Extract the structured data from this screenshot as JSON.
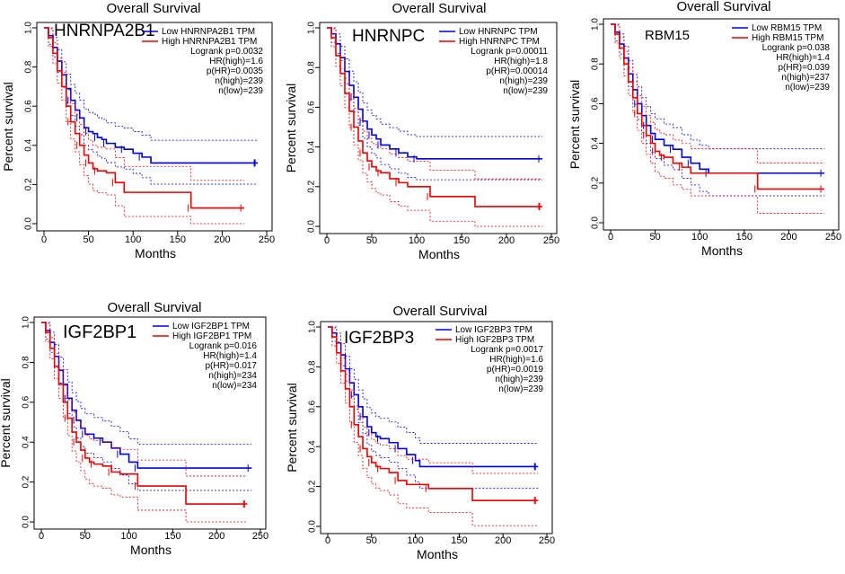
{
  "chart_data": [
    {
      "type": "line",
      "title": "Overall Survival",
      "gene": "HNRNPA2B1",
      "xlabel": "Months",
      "ylabel": "Percent survival",
      "xlim": [
        0,
        250
      ],
      "ylim": [
        0,
        1
      ],
      "xticks": [
        "0",
        "50",
        "100",
        "150",
        "200",
        "250"
      ],
      "yticks": [
        "0.0",
        "0.2",
        "0.4",
        "0.6",
        "0.8",
        "1.0"
      ],
      "legend": [
        "Low HNRNPA2B1 TPM",
        "High HNRNPA2B1 TPM"
      ],
      "stats": [
        "Logrank p=0.0032",
        "HR(high)=1.6",
        "p(HR)=0.0035",
        "n(high)=239",
        "n(low)=239"
      ],
      "series": [
        {
          "name": "Low HNRNPA2B1 TPM",
          "color": "#0000dd",
          "x": [
            0,
            5,
            10,
            15,
            20,
            25,
            30,
            35,
            40,
            45,
            50,
            55,
            60,
            65,
            70,
            80,
            90,
            100,
            110,
            120,
            240
          ],
          "y": [
            1.0,
            0.96,
            0.9,
            0.83,
            0.76,
            0.69,
            0.63,
            0.58,
            0.54,
            0.49,
            0.47,
            0.46,
            0.44,
            0.43,
            0.41,
            0.39,
            0.38,
            0.36,
            0.34,
            0.31,
            0.31
          ]
        },
        {
          "name": "High HNRNPA2B1 TPM",
          "color": "#ee0000",
          "x": [
            0,
            5,
            10,
            15,
            20,
            25,
            30,
            35,
            40,
            45,
            50,
            55,
            60,
            70,
            80,
            90,
            165,
            225
          ],
          "y": [
            1.0,
            0.95,
            0.87,
            0.78,
            0.7,
            0.6,
            0.52,
            0.46,
            0.4,
            0.35,
            0.31,
            0.28,
            0.27,
            0.26,
            0.21,
            0.16,
            0.08,
            0.08
          ]
        }
      ]
    },
    {
      "type": "line",
      "title": "Overall Survival",
      "gene": "HNRNPC",
      "xlabel": "Months",
      "ylabel": "Percent survival",
      "xlim": [
        0,
        250
      ],
      "ylim": [
        0,
        1
      ],
      "xticks": [
        "0",
        "50",
        "100",
        "150",
        "200",
        "250"
      ],
      "yticks": [
        "0.0",
        "0.2",
        "0.4",
        "0.6",
        "0.8",
        "1.0"
      ],
      "legend": [
        "Low HNRNPC TPM",
        "High HNRNPC TPM"
      ],
      "stats": [
        "Logrank p=0.00011",
        "HR(high)=1.8",
        "p(HR)=0.00014",
        "n(high)=239",
        "n(low)=239"
      ],
      "series": [
        {
          "name": "Low HNRNPC TPM",
          "color": "#0000dd",
          "x": [
            0,
            5,
            10,
            15,
            20,
            25,
            30,
            35,
            40,
            45,
            50,
            55,
            60,
            70,
            80,
            90,
            100,
            240
          ],
          "y": [
            1.0,
            0.97,
            0.92,
            0.85,
            0.78,
            0.71,
            0.65,
            0.59,
            0.53,
            0.49,
            0.46,
            0.44,
            0.41,
            0.39,
            0.37,
            0.35,
            0.34,
            0.34
          ]
        },
        {
          "name": "High HNRNPC TPM",
          "color": "#ee0000",
          "x": [
            0,
            5,
            10,
            15,
            20,
            25,
            30,
            35,
            40,
            45,
            50,
            55,
            60,
            70,
            80,
            90,
            115,
            165,
            240
          ],
          "y": [
            1.0,
            0.95,
            0.86,
            0.77,
            0.67,
            0.58,
            0.5,
            0.43,
            0.37,
            0.33,
            0.3,
            0.28,
            0.27,
            0.24,
            0.22,
            0.2,
            0.15,
            0.1,
            0.1
          ]
        }
      ]
    },
    {
      "type": "line",
      "title": "Overall Survival",
      "gene": "RBM15",
      "xlabel": "Months",
      "ylabel": "Percent survival",
      "xlim": [
        0,
        250
      ],
      "ylim": [
        0,
        1
      ],
      "xticks": [
        "0",
        "50",
        "100",
        "150",
        "200",
        "250"
      ],
      "yticks": [
        "0.0",
        "0.2",
        "0.4",
        "0.6",
        "0.8",
        "1.0"
      ],
      "legend": [
        "Low RBM15 TPM",
        "High RBM15 TPM"
      ],
      "stats": [
        "Logrank p=0.038",
        "HR(high)=1.4",
        "p(HR)=0.039",
        "n(high)=237",
        "n(low)=239"
      ],
      "series": [
        {
          "name": "Low RBM15 TPM",
          "color": "#0000dd",
          "x": [
            0,
            5,
            10,
            15,
            20,
            25,
            30,
            35,
            40,
            45,
            50,
            60,
            70,
            80,
            90,
            100,
            110,
            240
          ],
          "y": [
            1.0,
            0.96,
            0.9,
            0.83,
            0.75,
            0.67,
            0.6,
            0.54,
            0.49,
            0.45,
            0.42,
            0.39,
            0.37,
            0.33,
            0.3,
            0.27,
            0.25,
            0.25
          ]
        },
        {
          "name": "High RBM15 TPM",
          "color": "#ee0000",
          "x": [
            0,
            5,
            10,
            15,
            20,
            25,
            30,
            35,
            40,
            45,
            50,
            55,
            60,
            70,
            80,
            90,
            165,
            240
          ],
          "y": [
            1.0,
            0.95,
            0.88,
            0.8,
            0.71,
            0.63,
            0.55,
            0.49,
            0.44,
            0.4,
            0.36,
            0.34,
            0.33,
            0.3,
            0.28,
            0.25,
            0.17,
            0.17
          ]
        }
      ]
    },
    {
      "type": "line",
      "title": "Overall Survival",
      "gene": "IGF2BP1",
      "xlabel": "Months",
      "ylabel": "Percent survival",
      "xlim": [
        0,
        250
      ],
      "ylim": [
        0,
        1
      ],
      "xticks": [
        "0",
        "50",
        "100",
        "150",
        "200",
        "250"
      ],
      "yticks": [
        "0.0",
        "0.2",
        "0.4",
        "0.6",
        "0.8",
        "1.0"
      ],
      "legend": [
        "Low IGF2BP1 TPM",
        "High IGF2BP1 TPM"
      ],
      "stats": [
        "Logrank p=0.016",
        "HR(high)=1.4",
        "p(HR)=0.017",
        "n(high)=234",
        "n(low)=234"
      ],
      "series": [
        {
          "name": "Low IGF2BP1 TPM",
          "color": "#0000dd",
          "x": [
            0,
            5,
            10,
            15,
            20,
            25,
            30,
            35,
            40,
            45,
            50,
            60,
            70,
            80,
            90,
            100,
            110,
            240
          ],
          "y": [
            1.0,
            0.96,
            0.9,
            0.83,
            0.76,
            0.69,
            0.62,
            0.56,
            0.51,
            0.47,
            0.44,
            0.42,
            0.4,
            0.37,
            0.34,
            0.3,
            0.27,
            0.27
          ]
        },
        {
          "name": "High IGF2BP1 TPM",
          "color": "#ee0000",
          "x": [
            0,
            5,
            10,
            15,
            20,
            25,
            30,
            35,
            40,
            45,
            50,
            55,
            60,
            70,
            80,
            90,
            110,
            165,
            235
          ],
          "y": [
            1.0,
            0.95,
            0.87,
            0.78,
            0.69,
            0.6,
            0.52,
            0.45,
            0.4,
            0.36,
            0.32,
            0.3,
            0.29,
            0.28,
            0.25,
            0.24,
            0.18,
            0.09,
            0.09
          ]
        }
      ]
    },
    {
      "type": "line",
      "title": "Overall Survival",
      "gene": "IGF2BP3",
      "xlabel": "Months",
      "ylabel": "Percent survival",
      "xlim": [
        0,
        250
      ],
      "ylim": [
        0,
        1
      ],
      "xticks": [
        "0",
        "50",
        "100",
        "150",
        "200",
        "250"
      ],
      "yticks": [
        "0.0",
        "0.2",
        "0.4",
        "0.6",
        "0.8",
        "1.0"
      ],
      "legend": [
        "Low IGF2BP3 TPM",
        "High IGF2BP3 TPM"
      ],
      "stats": [
        "Logrank p=0.0017",
        "HR(high)=1.6",
        "p(HR)=0.0019",
        "n(high)=239",
        "n(low)=239"
      ],
      "series": [
        {
          "name": "Low IGF2BP3 TPM",
          "color": "#0000dd",
          "x": [
            0,
            5,
            10,
            15,
            20,
            25,
            30,
            35,
            40,
            45,
            50,
            55,
            60,
            70,
            80,
            90,
            100,
            105,
            240
          ],
          "y": [
            1.0,
            0.97,
            0.92,
            0.86,
            0.79,
            0.72,
            0.66,
            0.6,
            0.55,
            0.5,
            0.47,
            0.45,
            0.44,
            0.42,
            0.39,
            0.36,
            0.33,
            0.3,
            0.3
          ]
        },
        {
          "name": "High IGF2BP3 TPM",
          "color": "#ee0000",
          "x": [
            0,
            5,
            10,
            15,
            20,
            25,
            30,
            35,
            40,
            45,
            50,
            55,
            60,
            70,
            80,
            90,
            115,
            165,
            240
          ],
          "y": [
            1.0,
            0.95,
            0.87,
            0.78,
            0.69,
            0.6,
            0.51,
            0.45,
            0.39,
            0.35,
            0.32,
            0.3,
            0.29,
            0.27,
            0.23,
            0.21,
            0.19,
            0.13,
            0.13
          ]
        }
      ]
    }
  ]
}
